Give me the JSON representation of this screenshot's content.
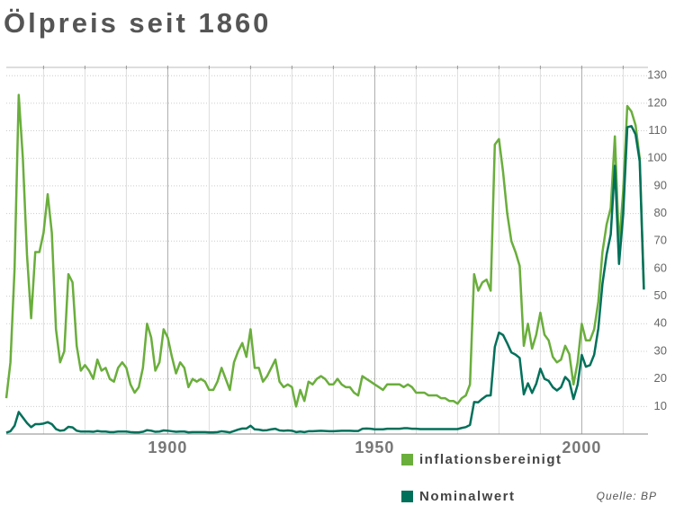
{
  "chart_data": {
    "type": "line",
    "title": "Ölpreis seit 1860",
    "source": "Quelle: BP",
    "x": [
      1861,
      1862,
      1863,
      1864,
      1865,
      1866,
      1867,
      1868,
      1869,
      1870,
      1871,
      1872,
      1873,
      1874,
      1875,
      1876,
      1877,
      1878,
      1879,
      1880,
      1881,
      1882,
      1883,
      1884,
      1885,
      1886,
      1887,
      1888,
      1889,
      1890,
      1891,
      1892,
      1893,
      1894,
      1895,
      1896,
      1897,
      1898,
      1899,
      1900,
      1901,
      1902,
      1903,
      1904,
      1905,
      1906,
      1907,
      1908,
      1909,
      1910,
      1911,
      1912,
      1913,
      1914,
      1915,
      1916,
      1917,
      1918,
      1919,
      1920,
      1921,
      1922,
      1923,
      1924,
      1925,
      1926,
      1927,
      1928,
      1929,
      1930,
      1931,
      1932,
      1933,
      1934,
      1935,
      1936,
      1937,
      1938,
      1939,
      1940,
      1941,
      1942,
      1943,
      1944,
      1945,
      1946,
      1947,
      1948,
      1949,
      1950,
      1951,
      1952,
      1953,
      1954,
      1955,
      1956,
      1957,
      1958,
      1959,
      1960,
      1961,
      1962,
      1963,
      1964,
      1965,
      1966,
      1967,
      1968,
      1969,
      1970,
      1971,
      1972,
      1973,
      1974,
      1975,
      1976,
      1977,
      1978,
      1979,
      1980,
      1981,
      1982,
      1983,
      1984,
      1985,
      1986,
      1987,
      1988,
      1989,
      1990,
      1991,
      1992,
      1993,
      1994,
      1995,
      1996,
      1997,
      1998,
      1999,
      2000,
      2001,
      2002,
      2003,
      2004,
      2005,
      2006,
      2007,
      2008,
      2009,
      2010,
      2011,
      2012,
      2013,
      2014,
      2015
    ],
    "series": [
      {
        "name": "inflationsbereinigt",
        "color": "#6aae3c",
        "values": [
          13,
          26,
          60,
          123,
          100,
          65,
          42,
          66,
          66,
          73,
          87,
          73,
          38,
          26,
          30,
          58,
          55,
          32,
          23,
          25,
          23,
          20,
          27,
          23,
          24,
          20,
          19,
          24,
          26,
          24,
          18,
          15,
          17,
          24,
          40,
          35,
          23,
          26,
          38,
          35,
          28,
          22,
          26,
          24,
          17,
          20,
          19,
          20,
          19,
          16,
          16,
          19,
          24,
          20,
          16,
          26,
          30,
          33,
          28,
          38,
          24,
          24,
          19,
          21,
          24,
          27,
          19,
          17,
          18,
          17,
          10,
          16,
          12,
          19,
          18,
          20,
          21,
          20,
          18,
          18,
          20,
          18,
          17,
          17,
          15,
          14,
          21,
          20,
          19,
          18,
          17,
          16,
          18,
          18,
          18,
          18,
          17,
          18,
          17,
          15,
          15,
          15,
          14,
          14,
          14,
          13,
          13,
          12,
          12,
          11,
          13,
          14,
          18,
          58,
          52,
          55,
          56,
          52,
          105,
          107,
          95,
          80,
          70,
          66,
          61,
          32,
          40,
          31,
          36,
          44,
          36,
          34,
          28,
          26,
          27,
          32,
          29,
          18,
          26,
          40,
          34,
          34,
          38,
          48,
          66,
          76,
          82,
          108,
          68,
          88,
          119,
          117,
          112,
          100,
          53
        ]
      },
      {
        "name": "Nominalwert",
        "color": "#00705a",
        "values": [
          0.5,
          1,
          3,
          8,
          6,
          4,
          2.5,
          3.6,
          3.6,
          3.8,
          4.3,
          3.6,
          1.8,
          1.2,
          1.4,
          2.6,
          2.4,
          1.2,
          0.9,
          0.9,
          0.9,
          0.8,
          1.1,
          0.9,
          0.9,
          0.7,
          0.7,
          0.9,
          0.9,
          0.9,
          0.7,
          0.6,
          0.6,
          0.8,
          1.4,
          1.2,
          0.8,
          0.9,
          1.3,
          1.2,
          1,
          0.8,
          0.9,
          0.9,
          0.6,
          0.7,
          0.7,
          0.7,
          0.7,
          0.6,
          0.6,
          0.7,
          1,
          0.8,
          0.6,
          1.1,
          1.6,
          2,
          2,
          3,
          1.7,
          1.6,
          1.3,
          1.4,
          1.7,
          1.9,
          1.3,
          1.2,
          1.3,
          1.2,
          0.7,
          0.9,
          0.7,
          1,
          1,
          1.1,
          1.2,
          1.1,
          1,
          1,
          1.1,
          1.2,
          1.2,
          1.2,
          1.1,
          1.1,
          1.9,
          2,
          1.9,
          1.7,
          1.7,
          1.7,
          1.9,
          1.9,
          1.9,
          1.9,
          2.1,
          2.1,
          1.9,
          1.9,
          1.8,
          1.8,
          1.8,
          1.8,
          1.8,
          1.8,
          1.8,
          1.8,
          1.8,
          1.8,
          2.2,
          2.5,
          3.3,
          11.6,
          11.5,
          12.8,
          13.9,
          14,
          31.6,
          36.8,
          35.9,
          32.9,
          29.6,
          28.8,
          27.6,
          14.4,
          18.4,
          14.9,
          18.2,
          23.7,
          20,
          19.3,
          17,
          15.8,
          17,
          20.7,
          19.1,
          12.7,
          17.9,
          28.7,
          24.4,
          25,
          28.8,
          38.3,
          54.5,
          65.1,
          72.4,
          97.3,
          61.7,
          79.5,
          111.3,
          111.7,
          108.7,
          98.9,
          52.4
        ]
      }
    ],
    "xlim": [
      1861,
      2016
    ],
    "xticks": [
      1900,
      1950,
      2000
    ],
    "xminor_ticks": [
      1870,
      1880,
      1890,
      1910,
      1920,
      1930,
      1940,
      1960,
      1970,
      1980,
      1990,
      2010
    ],
    "ylim": [
      0,
      133
    ],
    "yticks": [
      10,
      20,
      30,
      40,
      50,
      60,
      70,
      80,
      90,
      100,
      110,
      120,
      130
    ],
    "grid": true
  }
}
